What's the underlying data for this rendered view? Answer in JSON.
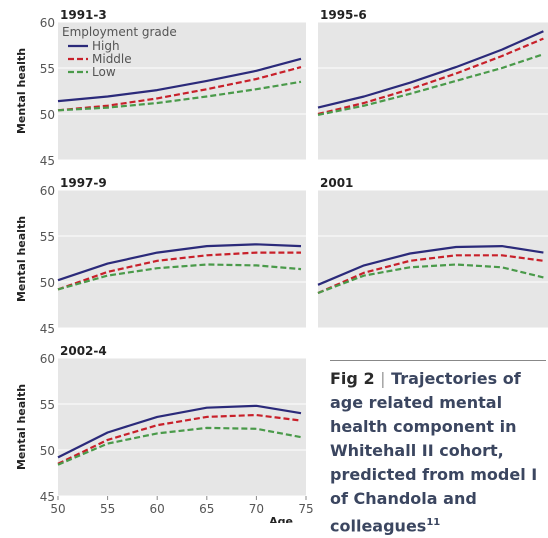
{
  "chart_data": [
    {
      "type": "line",
      "title": "1991-3",
      "ylabel": "Mental health",
      "show_ytick_labels": true,
      "legend_title": "Employment grade",
      "legend": "top-left",
      "x": [
        50,
        55,
        60,
        65,
        70,
        74.5
      ],
      "xlim": [
        50,
        75
      ],
      "ylim": [
        45,
        60
      ],
      "yticks": [
        45,
        50,
        55,
        60
      ],
      "grid": true,
      "series": [
        {
          "name": "High",
          "color": "#2b2a7a",
          "dash": false,
          "values": [
            51.4,
            51.9,
            52.6,
            53.6,
            54.7,
            56.0
          ]
        },
        {
          "name": "Middle",
          "color": "#c8202a",
          "dash": true,
          "values": [
            50.4,
            50.9,
            51.7,
            52.7,
            53.8,
            55.1
          ]
        },
        {
          "name": "Low",
          "color": "#4a9a4a",
          "dash": true,
          "values": [
            50.4,
            50.7,
            51.2,
            51.9,
            52.7,
            53.5
          ]
        }
      ]
    },
    {
      "type": "line",
      "title": "1995-6",
      "show_ytick_labels": false,
      "x": [
        50,
        55,
        60,
        65,
        70,
        74.5
      ],
      "xlim": [
        50,
        75
      ],
      "ylim": [
        45,
        60
      ],
      "yticks": [
        45,
        50,
        55,
        60
      ],
      "grid": true,
      "series": [
        {
          "color": "#2b2a7a",
          "dash": false,
          "values": [
            50.7,
            51.9,
            53.4,
            55.1,
            57.0,
            59.0
          ]
        },
        {
          "color": "#c8202a",
          "dash": true,
          "values": [
            50.0,
            51.2,
            52.7,
            54.4,
            56.3,
            58.2
          ]
        },
        {
          "color": "#4a9a4a",
          "dash": true,
          "values": [
            49.9,
            50.9,
            52.2,
            53.6,
            55.0,
            56.5
          ]
        }
      ]
    },
    {
      "type": "line",
      "title": "1997-9",
      "ylabel": "Mental health",
      "show_ytick_labels": true,
      "x": [
        50,
        55,
        60,
        65,
        70,
        74.5
      ],
      "xlim": [
        50,
        75
      ],
      "ylim": [
        45,
        60
      ],
      "yticks": [
        45,
        50,
        55,
        60
      ],
      "grid": true,
      "series": [
        {
          "color": "#2b2a7a",
          "dash": false,
          "values": [
            50.2,
            52.0,
            53.2,
            53.9,
            54.1,
            53.9
          ]
        },
        {
          "color": "#c8202a",
          "dash": true,
          "values": [
            49.2,
            51.1,
            52.3,
            52.9,
            53.2,
            53.2
          ]
        },
        {
          "color": "#4a9a4a",
          "dash": true,
          "values": [
            49.2,
            50.7,
            51.5,
            51.9,
            51.8,
            51.4
          ]
        }
      ]
    },
    {
      "type": "line",
      "title": "2001",
      "show_ytick_labels": false,
      "x": [
        50,
        55,
        60,
        65,
        70,
        74.5
      ],
      "xlim": [
        50,
        75
      ],
      "ylim": [
        45,
        60
      ],
      "yticks": [
        45,
        50,
        55,
        60
      ],
      "grid": true,
      "series": [
        {
          "color": "#2b2a7a",
          "dash": false,
          "values": [
            49.7,
            51.8,
            53.1,
            53.8,
            53.9,
            53.2
          ]
        },
        {
          "color": "#c8202a",
          "dash": true,
          "values": [
            48.8,
            51.0,
            52.3,
            52.9,
            52.9,
            52.3
          ]
        },
        {
          "color": "#4a9a4a",
          "dash": true,
          "values": [
            48.8,
            50.7,
            51.6,
            51.9,
            51.6,
            50.5
          ]
        }
      ]
    },
    {
      "type": "line",
      "title": "2002-4",
      "ylabel": "Mental health",
      "xlabel": "Age",
      "show_ytick_labels": true,
      "x": [
        50,
        55,
        60,
        65,
        70,
        74.5
      ],
      "xlim": [
        50,
        75
      ],
      "xticks": [
        50,
        55,
        60,
        65,
        70,
        75
      ],
      "ylim": [
        45,
        60
      ],
      "yticks": [
        45,
        50,
        55,
        60
      ],
      "grid": true,
      "series": [
        {
          "color": "#2b2a7a",
          "dash": false,
          "values": [
            49.2,
            51.9,
            53.6,
            54.6,
            54.8,
            54.0
          ]
        },
        {
          "color": "#c8202a",
          "dash": true,
          "values": [
            48.5,
            51.1,
            52.7,
            53.6,
            53.8,
            53.2
          ]
        },
        {
          "color": "#4a9a4a",
          "dash": true,
          "values": [
            48.4,
            50.7,
            51.8,
            52.4,
            52.3,
            51.4
          ]
        }
      ]
    }
  ],
  "caption": {
    "label": "Fig 2",
    "text": "Trajectories of age related mental health component in Whitehall II cohort, predicted from model I of Chandola and colleagues",
    "ref": "11"
  }
}
